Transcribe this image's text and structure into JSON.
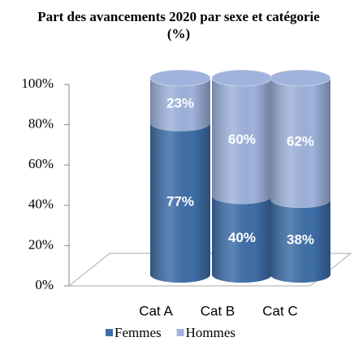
{
  "chart_data": {
    "type": "stacked_cylinder",
    "title": "Part des avancements 2020 par sexe et  catégorie (%)",
    "categories": [
      "Cat A",
      "Cat B",
      "Cat C"
    ],
    "series": [
      {
        "name": "Femmes",
        "color": "#3f6fa9",
        "values": [
          77,
          40,
          38
        ],
        "value_labels": [
          "77%",
          "40%",
          "38%"
        ]
      },
      {
        "name": "Hommes",
        "color": "#9fb3dc",
        "values": [
          23,
          60,
          62
        ],
        "value_labels": [
          "23%",
          "60%",
          "62%"
        ]
      }
    ],
    "ylim": [
      0,
      100
    ],
    "yticks": [
      {
        "value": 0,
        "label": "0%"
      },
      {
        "value": 20,
        "label": "20%"
      },
      {
        "value": 40,
        "label": "40%"
      },
      {
        "value": 60,
        "label": "60%"
      },
      {
        "value": 80,
        "label": "80%"
      },
      {
        "value": 100,
        "label": "100%"
      }
    ],
    "legend": "bottom"
  }
}
